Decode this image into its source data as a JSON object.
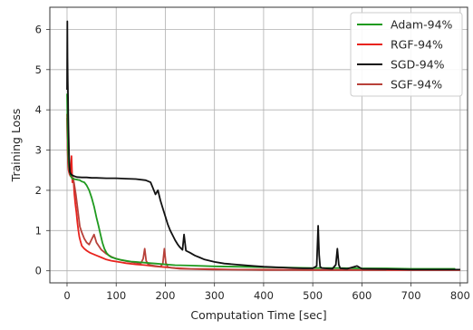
{
  "chart_data": {
    "type": "line",
    "xlabel": "Computation Time [sec]",
    "ylabel": "Training Loss",
    "xlim": [
      -35,
      815
    ],
    "ylim": [
      -0.3,
      6.55
    ],
    "x_ticks": [
      0,
      100,
      200,
      300,
      400,
      500,
      600,
      700,
      800
    ],
    "y_ticks": [
      0,
      1,
      2,
      3,
      4,
      5,
      6
    ],
    "grid": true,
    "legend_position": "top-right",
    "series": [
      {
        "name": "Adam-94%",
        "color": "#1f9a1f",
        "x": [
          0,
          1,
          2,
          4,
          6,
          8,
          10,
          14,
          18,
          22,
          26,
          30,
          35,
          40,
          45,
          50,
          55,
          60,
          64,
          68,
          72,
          76,
          80,
          85,
          90,
          100,
          110,
          120,
          130,
          140,
          150,
          160,
          170,
          180,
          200,
          220,
          250,
          300,
          350,
          400,
          450,
          500,
          550,
          600,
          650,
          700,
          750,
          790
        ],
        "y": [
          4.4,
          3.6,
          3.0,
          2.6,
          2.45,
          2.35,
          2.3,
          2.28,
          2.27,
          2.26,
          2.25,
          2.22,
          2.2,
          2.12,
          2.0,
          1.82,
          1.6,
          1.32,
          1.12,
          0.9,
          0.7,
          0.55,
          0.45,
          0.38,
          0.34,
          0.3,
          0.27,
          0.25,
          0.23,
          0.22,
          0.21,
          0.2,
          0.19,
          0.18,
          0.16,
          0.14,
          0.13,
          0.11,
          0.1,
          0.09,
          0.08,
          0.07,
          0.07,
          0.06,
          0.06,
          0.05,
          0.05,
          0.05
        ]
      },
      {
        "name": "RGF-94%",
        "color": "#e8231e",
        "x": [
          0,
          1,
          2,
          3,
          5,
          7,
          9,
          11,
          13,
          15,
          17,
          19,
          21,
          23,
          25,
          27,
          30,
          35,
          40,
          45,
          50,
          60,
          70,
          80,
          90,
          100,
          110,
          120,
          140,
          160,
          180,
          200,
          220,
          250,
          300,
          350,
          400,
          500,
          600,
          700,
          800
        ],
        "y": [
          3.9,
          3.1,
          2.65,
          2.5,
          2.4,
          2.35,
          2.85,
          2.2,
          2.3,
          1.9,
          1.65,
          1.45,
          1.2,
          1.0,
          0.85,
          0.75,
          0.62,
          0.55,
          0.5,
          0.46,
          0.43,
          0.38,
          0.33,
          0.28,
          0.25,
          0.23,
          0.21,
          0.19,
          0.16,
          0.14,
          0.11,
          0.09,
          0.07,
          0.05,
          0.04,
          0.03,
          0.03,
          0.02,
          0.02,
          0.02,
          0.02
        ]
      },
      {
        "name": "SGD-94%",
        "color": "#111111",
        "x": [
          0,
          0.5,
          1,
          1.5,
          2,
          2.5,
          3,
          4,
          5,
          6,
          8,
          10,
          15,
          20,
          30,
          40,
          50,
          60,
          80,
          100,
          120,
          140,
          160,
          170,
          175,
          180,
          185,
          190,
          195,
          200,
          205,
          210,
          215,
          220,
          225,
          230,
          235,
          238,
          242,
          250,
          260,
          270,
          280,
          300,
          320,
          340,
          360,
          380,
          400,
          420,
          440,
          460,
          480,
          500,
          508,
          511,
          513,
          515,
          518,
          525,
          540,
          547,
          550,
          553,
          556,
          570,
          590,
          600,
          650,
          700,
          750,
          800
        ],
        "y": [
          4.5,
          6.2,
          5.3,
          4.7,
          4.3,
          3.9,
          3.5,
          2.9,
          2.6,
          2.45,
          2.4,
          2.38,
          2.35,
          2.33,
          2.32,
          2.32,
          2.31,
          2.31,
          2.3,
          2.3,
          2.29,
          2.28,
          2.25,
          2.2,
          2.05,
          1.9,
          2.0,
          1.75,
          1.55,
          1.35,
          1.15,
          1.0,
          0.88,
          0.76,
          0.66,
          0.58,
          0.52,
          0.9,
          0.5,
          0.45,
          0.38,
          0.33,
          0.28,
          0.22,
          0.18,
          0.16,
          0.14,
          0.12,
          0.1,
          0.09,
          0.08,
          0.07,
          0.06,
          0.06,
          0.12,
          1.12,
          0.4,
          0.1,
          0.07,
          0.06,
          0.05,
          0.15,
          0.55,
          0.15,
          0.06,
          0.05,
          0.12,
          0.05,
          0.04,
          0.03,
          0.03,
          0.03
        ]
      },
      {
        "name": "SGF-94%",
        "color": "#b8413a",
        "x": [
          0,
          1,
          2,
          4,
          6,
          8,
          10,
          14,
          18,
          22,
          26,
          30,
          35,
          40,
          45,
          50,
          55,
          60,
          70,
          80,
          90,
          100,
          110,
          120,
          130,
          140,
          150,
          155,
          158,
          161,
          165,
          170,
          180,
          190,
          195,
          198,
          201,
          205,
          215,
          230,
          260,
          300,
          350,
          400,
          450,
          500,
          550,
          600,
          650
        ],
        "y": [
          3.8,
          3.1,
          2.7,
          2.5,
          2.4,
          2.36,
          2.33,
          2.2,
          1.9,
          1.5,
          1.1,
          0.95,
          0.8,
          0.7,
          0.65,
          0.78,
          0.9,
          0.7,
          0.52,
          0.42,
          0.35,
          0.3,
          0.27,
          0.24,
          0.22,
          0.2,
          0.18,
          0.3,
          0.55,
          0.25,
          0.16,
          0.14,
          0.12,
          0.1,
          0.18,
          0.55,
          0.2,
          0.09,
          0.07,
          0.05,
          0.04,
          0.03,
          0.03,
          0.02,
          0.02,
          0.02,
          0.02,
          0.02,
          0.02
        ]
      }
    ]
  }
}
